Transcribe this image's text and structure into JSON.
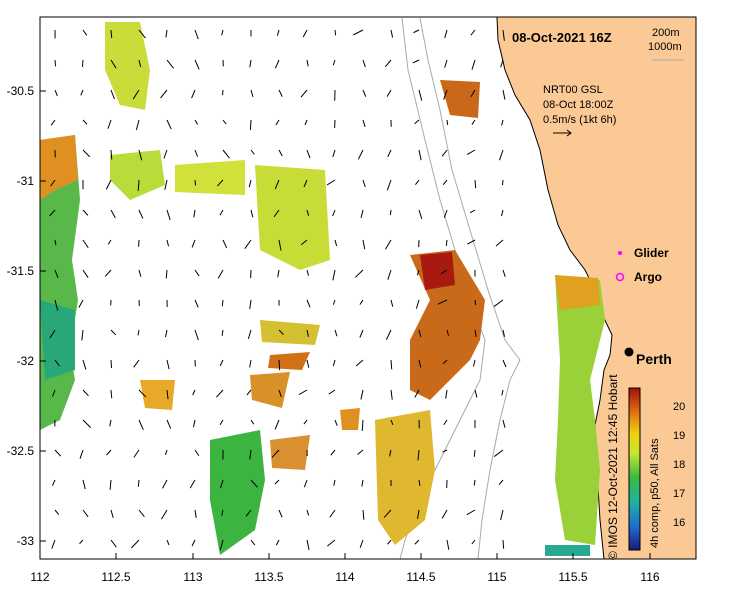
{
  "map": {
    "date_title": "08-Oct-2021 16Z",
    "contours": [
      "200m",
      "1000m"
    ],
    "current_info": [
      "NRT00 GSL",
      "08-Oct 18:00Z",
      "0.5m/s (1kt 6h)"
    ],
    "legend": {
      "glider": "Glider",
      "argo": "Argo",
      "glider_color": "#ff00ff",
      "argo_color": "#ff00ff"
    },
    "city": "Perth",
    "land_color": "#fbc995",
    "credit": "© IMOS 12-Oct-2021 12:45 Hobart",
    "colorbar_caption": "4h comp, p50, All Sats",
    "colorbar_ticks": [
      "20",
      "19",
      "18",
      "17",
      "16"
    ],
    "y_labels": [
      "-30.5",
      "-31",
      "-31.5",
      "-32",
      "-32.5",
      "-33"
    ],
    "x_labels": [
      "112",
      "112.5",
      "113",
      "113.5",
      "114",
      "114.5",
      "115",
      "115.5",
      "116"
    ]
  }
}
